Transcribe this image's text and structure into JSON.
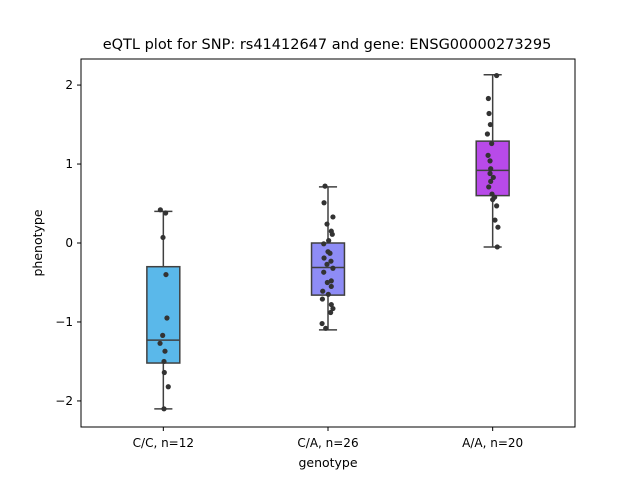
{
  "chart_data": {
    "type": "box",
    "title": "eQTL plot for SNP: rs41412647 and gene: ENSG00000273295",
    "xlabel": "genotype",
    "ylabel": "phenotype",
    "ylim": [
      -2.33,
      2.33
    ],
    "yticks": [
      -2,
      -1,
      0,
      1,
      2
    ],
    "yticklabels": [
      "−2",
      "−1",
      "0",
      "1",
      "2"
    ],
    "grid": false,
    "categories": [
      "C/C, n=12",
      "C/A, n=26",
      "A/A, n=20"
    ],
    "colors": [
      "#5ab8ea",
      "#8e8cf6",
      "#b84ae9"
    ],
    "boxes": [
      {
        "q1": -1.52,
        "median": -1.23,
        "q3": -0.3,
        "whisker_low": -2.1,
        "whisker_high": 0.4
      },
      {
        "q1": -0.66,
        "median": -0.31,
        "q3": 0.0,
        "whisker_low": -1.1,
        "whisker_high": 0.71
      },
      {
        "q1": 0.6,
        "median": 0.92,
        "q3": 1.29,
        "whisker_low": -0.05,
        "whisker_high": 2.13
      }
    ],
    "points": [
      [
        [
          -0.18,
          0.42
        ],
        [
          0.14,
          0.38
        ],
        [
          -0.02,
          0.07
        ],
        [
          0.16,
          -0.4
        ],
        [
          0.22,
          -0.95
        ],
        [
          -0.04,
          -1.17
        ],
        [
          -0.2,
          -1.27
        ],
        [
          0.1,
          -1.37
        ],
        [
          0.04,
          -1.5
        ],
        [
          0.06,
          -1.64
        ],
        [
          0.3,
          -1.82
        ],
        [
          0.04,
          -2.1
        ]
      ],
      [
        [
          -0.18,
          0.72
        ],
        [
          -0.24,
          0.51
        ],
        [
          0.3,
          0.33
        ],
        [
          -0.06,
          0.24
        ],
        [
          0.2,
          0.15
        ],
        [
          0.26,
          0.11
        ],
        [
          0.04,
          0.03
        ],
        [
          -0.26,
          -0.01
        ],
        [
          0.0,
          -0.11
        ],
        [
          0.12,
          -0.13
        ],
        [
          -0.24,
          -0.19
        ],
        [
          0.18,
          -0.23
        ],
        [
          -0.06,
          -0.27
        ],
        [
          0.3,
          -0.32
        ],
        [
          -0.26,
          -0.37
        ],
        [
          0.2,
          -0.48
        ],
        [
          -0.04,
          -0.5
        ],
        [
          0.2,
          -0.55
        ],
        [
          -0.32,
          -0.61
        ],
        [
          0.02,
          -0.65
        ],
        [
          -0.34,
          -0.71
        ],
        [
          0.2,
          -0.78
        ],
        [
          0.3,
          -0.83
        ],
        [
          0.16,
          -0.88
        ],
        [
          -0.36,
          -1.02
        ],
        [
          -0.14,
          -1.08
        ]
      ],
      [
        [
          0.24,
          2.12
        ],
        [
          -0.26,
          1.83
        ],
        [
          -0.22,
          1.64
        ],
        [
          -0.14,
          1.5
        ],
        [
          -0.32,
          1.38
        ],
        [
          -0.06,
          1.26
        ],
        [
          -0.28,
          1.11
        ],
        [
          -0.16,
          1.04
        ],
        [
          -0.12,
          0.94
        ],
        [
          -0.16,
          0.88
        ],
        [
          0.04,
          0.83
        ],
        [
          -0.12,
          0.78
        ],
        [
          -0.24,
          0.71
        ],
        [
          -0.04,
          0.62
        ],
        [
          0.12,
          0.58
        ],
        [
          0.0,
          0.55
        ],
        [
          0.24,
          0.47
        ],
        [
          0.14,
          0.29
        ],
        [
          0.32,
          0.2
        ],
        [
          0.28,
          -0.05
        ]
      ]
    ]
  }
}
